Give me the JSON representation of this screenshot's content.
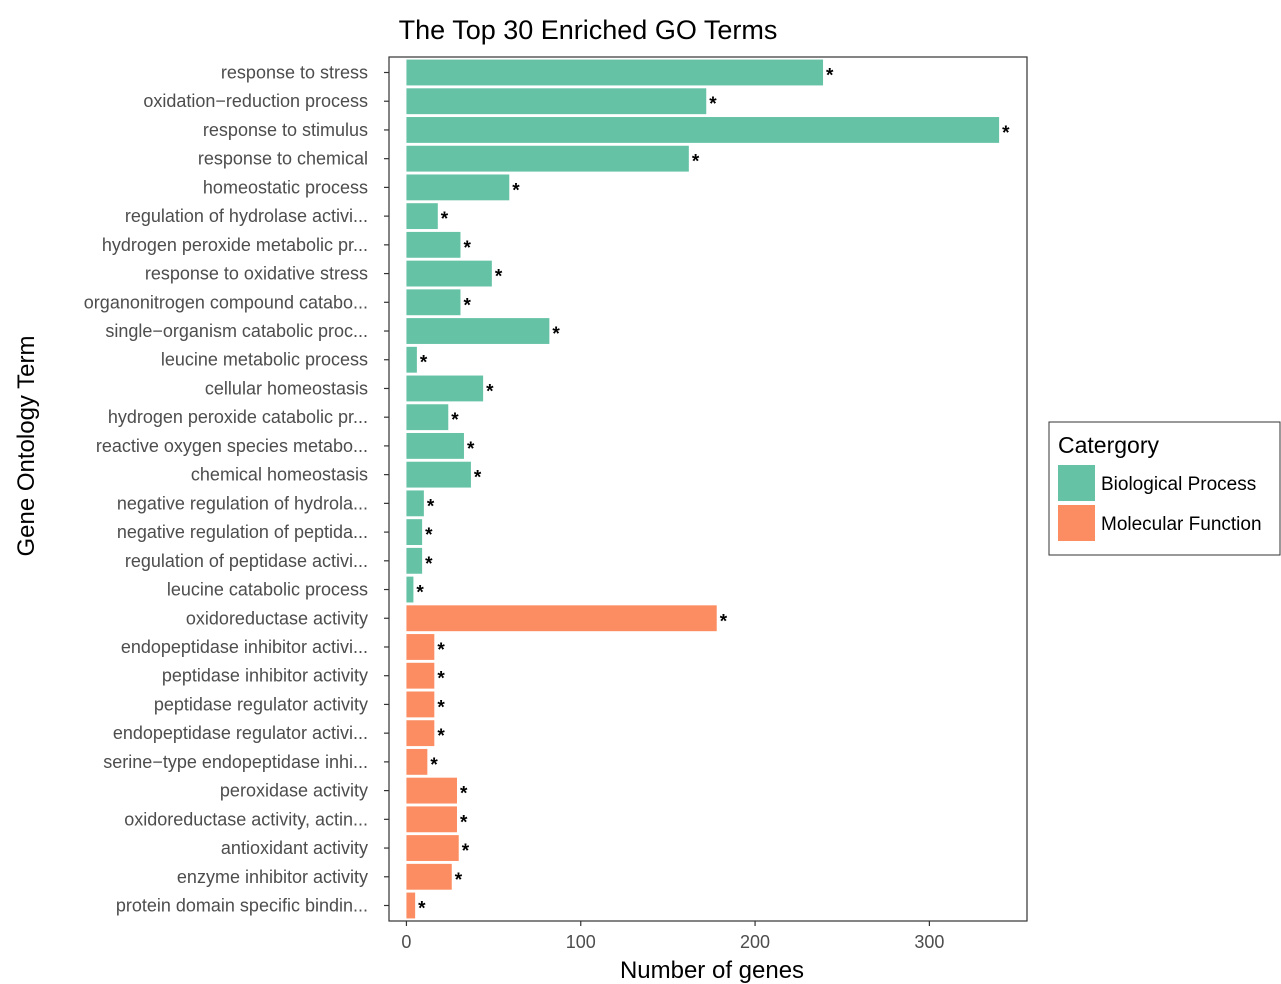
{
  "chart_data": {
    "type": "bar",
    "orientation": "horizontal",
    "title": "The Top 30 Enriched GO Terms",
    "xlabel": "Number of genes",
    "ylabel": "Gene Ontology Term",
    "xlim": [
      -10,
      356
    ],
    "xticks": [
      0,
      100,
      200,
      300
    ],
    "grid": false,
    "significance_marker": "*",
    "legend": {
      "title": "Catergory",
      "position": "right",
      "entries": [
        {
          "name": "Biological Process",
          "color": "#66c2a5"
        },
        {
          "name": "Molecular Function",
          "color": "#fc8d62"
        }
      ]
    },
    "categories": [
      "response to stress",
      "oxidation−reduction process",
      "response to stimulus",
      "response to chemical",
      "homeostatic process",
      "regulation of hydrolase activi...",
      "hydrogen peroxide metabolic pr...",
      "response to oxidative stress",
      "organonitrogen compound catabo...",
      "single−organism catabolic proc...",
      "leucine metabolic process",
      "cellular homeostasis",
      "hydrogen peroxide catabolic pr...",
      "reactive oxygen species metabo...",
      "chemical homeostasis",
      "negative regulation of hydrola...",
      "negative regulation of peptida...",
      "regulation of peptidase activi...",
      "leucine catabolic process",
      "oxidoreductase activity",
      "endopeptidase inhibitor activi...",
      "peptidase inhibitor activity",
      "peptidase regulator activity",
      "endopeptidase regulator activi...",
      "serine−type endopeptidase inhi...",
      "peroxidase activity",
      "oxidoreductase activity, actin...",
      "antioxidant activity",
      "enzyme inhibitor activity",
      "protein domain specific bindin..."
    ],
    "values": [
      239,
      172,
      340,
      162,
      59,
      18,
      31,
      49,
      31,
      82,
      6,
      44,
      24,
      33,
      37,
      10,
      9,
      9,
      4,
      178,
      16,
      16,
      16,
      16,
      12,
      29,
      29,
      30,
      26,
      5
    ],
    "groups": [
      "Biological Process",
      "Biological Process",
      "Biological Process",
      "Biological Process",
      "Biological Process",
      "Biological Process",
      "Biological Process",
      "Biological Process",
      "Biological Process",
      "Biological Process",
      "Biological Process",
      "Biological Process",
      "Biological Process",
      "Biological Process",
      "Biological Process",
      "Biological Process",
      "Biological Process",
      "Biological Process",
      "Biological Process",
      "Molecular Function",
      "Molecular Function",
      "Molecular Function",
      "Molecular Function",
      "Molecular Function",
      "Molecular Function",
      "Molecular Function",
      "Molecular Function",
      "Molecular Function",
      "Molecular Function",
      "Molecular Function"
    ]
  }
}
